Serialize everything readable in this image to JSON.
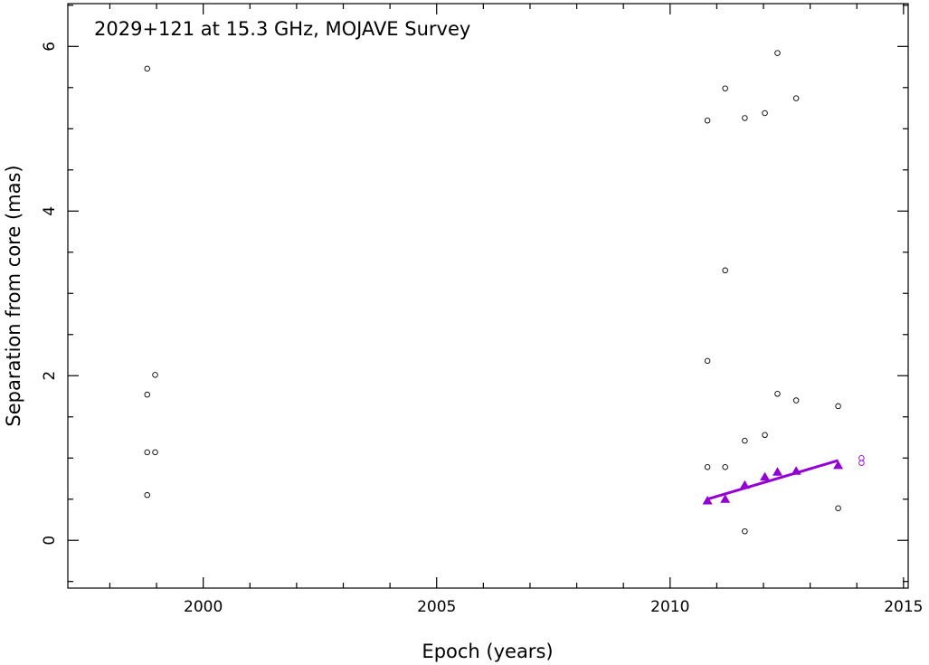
{
  "chart_data": {
    "type": "scatter",
    "title": "2029+121 at 15.3 GHz, MOJAVE Survey",
    "xlabel": "Epoch (years)",
    "ylabel": "Separation from core (mas)",
    "xlim": [
      1997.1,
      2015.1
    ],
    "ylim": [
      -0.58,
      6.52
    ],
    "x_ticks": [
      2000,
      2005,
      2010,
      2015
    ],
    "x_tick_labels": [
      "2000",
      "2005",
      "2010",
      "2015"
    ],
    "y_ticks": [
      0,
      2,
      4,
      6
    ],
    "y_tick_labels": [
      "0",
      "2",
      "4",
      "6"
    ],
    "grid": false,
    "series": [
      {
        "marker": "open-circle",
        "color": "#000000",
        "points": [
          [
            1998.8,
            5.73
          ],
          [
            1998.8,
            1.77
          ],
          [
            1998.8,
            1.07
          ],
          [
            1998.8,
            0.55
          ],
          [
            1998.97,
            2.01
          ],
          [
            1998.97,
            1.07
          ],
          [
            2010.8,
            5.1
          ],
          [
            2010.8,
            2.18
          ],
          [
            2010.8,
            0.89
          ],
          [
            2011.18,
            5.49
          ],
          [
            2011.18,
            3.28
          ],
          [
            2011.18,
            0.89
          ],
          [
            2011.6,
            5.13
          ],
          [
            2011.6,
            1.21
          ],
          [
            2011.6,
            0.11
          ],
          [
            2012.03,
            5.19
          ],
          [
            2012.03,
            1.28
          ],
          [
            2012.3,
            5.92
          ],
          [
            2012.3,
            1.78
          ],
          [
            2012.7,
            5.37
          ],
          [
            2012.7,
            1.7
          ],
          [
            2013.6,
            1.63
          ],
          [
            2013.6,
            0.39
          ]
        ]
      },
      {
        "marker": "filled-triangle",
        "color": "#9400d3",
        "points": [
          [
            2010.8,
            0.48
          ],
          [
            2011.18,
            0.5
          ],
          [
            2011.6,
            0.67
          ],
          [
            2012.03,
            0.77
          ],
          [
            2012.3,
            0.83
          ],
          [
            2012.7,
            0.84
          ],
          [
            2013.6,
            0.91
          ]
        ],
        "fit_line": [
          [
            2010.8,
            0.5
          ],
          [
            2013.6,
            0.97
          ]
        ]
      },
      {
        "marker": "open-circle",
        "color": "#9400d3",
        "points": [
          [
            2014.1,
            1.0
          ],
          [
            2014.1,
            0.94
          ]
        ]
      }
    ]
  }
}
